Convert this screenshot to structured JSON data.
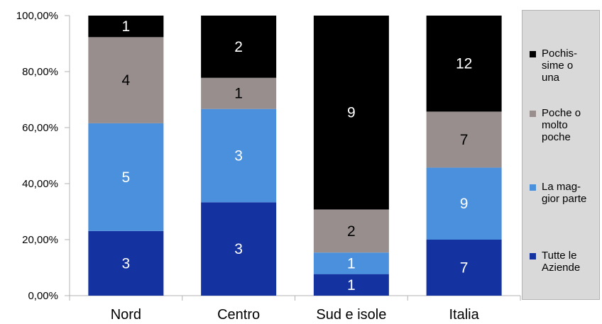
{
  "chart_data": {
    "type": "bar",
    "stacked": "percent",
    "categories": [
      "Nord",
      "Centro",
      "Sud e isole",
      "Italia"
    ],
    "series": [
      {
        "name": "Tutte le\nAziende",
        "color": "#1433a0",
        "values": [
          3,
          3,
          1,
          7
        ]
      },
      {
        "name": "La mag-\ngior parte",
        "color": "#4a90dd",
        "values": [
          5,
          3,
          1,
          9
        ]
      },
      {
        "name": "Poche o\nmolto\npoche",
        "color": "#988e8e",
        "values": [
          4,
          1,
          2,
          7
        ]
      },
      {
        "name": "Pochis-\nsime o\nuna",
        "color": "#000000",
        "values": [
          1,
          2,
          9,
          12
        ]
      }
    ],
    "yticks": [
      "0,00%",
      "20,00%",
      "40,00%",
      "60,00%",
      "80,00%",
      "100,00%"
    ],
    "ylim": [
      0,
      100
    ],
    "grid": false,
    "legend": "right",
    "title": "",
    "xlabel": "",
    "ylabel": ""
  }
}
